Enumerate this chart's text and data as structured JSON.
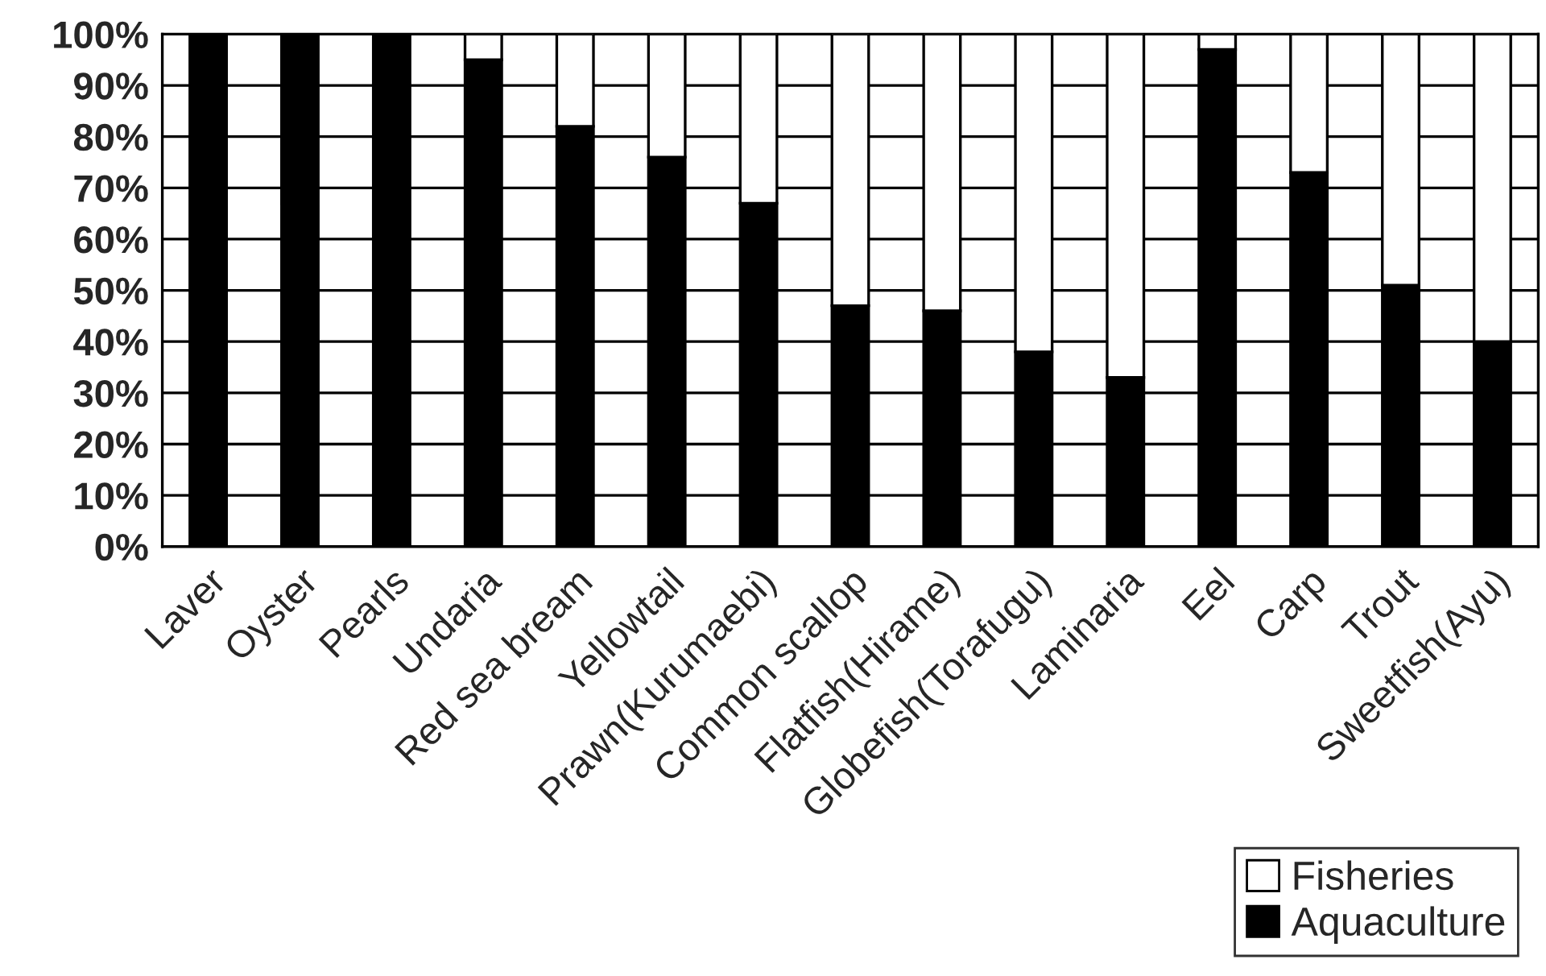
{
  "chart_data": {
    "type": "bar",
    "stacked": true,
    "categories": [
      "Laver",
      "Oyster",
      "Pearls",
      "Undaria",
      "Red sea bream",
      "Yellowtail",
      "Prawn(Kurumaebi)",
      "Common scallop",
      "Flatfish(Hirame)",
      "Globefish(Torafugu)",
      "Laminaria",
      "Eel",
      "Carp",
      "Trout",
      "Sweetfish(Ayu)"
    ],
    "series": [
      {
        "name": "Aquaculture",
        "color": "#000000",
        "values": [
          100,
          100,
          100,
          95,
          82,
          76,
          67,
          47,
          46,
          38,
          33,
          97,
          73,
          51,
          40
        ]
      },
      {
        "name": "Fisheries",
        "color": "#ffffff",
        "values": [
          0,
          0,
          0,
          5,
          18,
          24,
          33,
          53,
          54,
          62,
          67,
          3,
          27,
          49,
          60
        ]
      }
    ],
    "ylim": [
      0,
      100
    ],
    "yticks": [
      {
        "value": 0,
        "label": "0%"
      },
      {
        "value": 10,
        "label": "10%"
      },
      {
        "value": 20,
        "label": "20%"
      },
      {
        "value": 30,
        "label": "30%"
      },
      {
        "value": 40,
        "label": "40%"
      },
      {
        "value": 50,
        "label": "50%"
      },
      {
        "value": 60,
        "label": "60%"
      },
      {
        "value": 70,
        "label": "70%"
      },
      {
        "value": 80,
        "label": "80%"
      },
      {
        "value": 90,
        "label": "90%"
      },
      {
        "value": 100,
        "label": "100%"
      }
    ],
    "grid": "y",
    "legend": "bottom right"
  }
}
